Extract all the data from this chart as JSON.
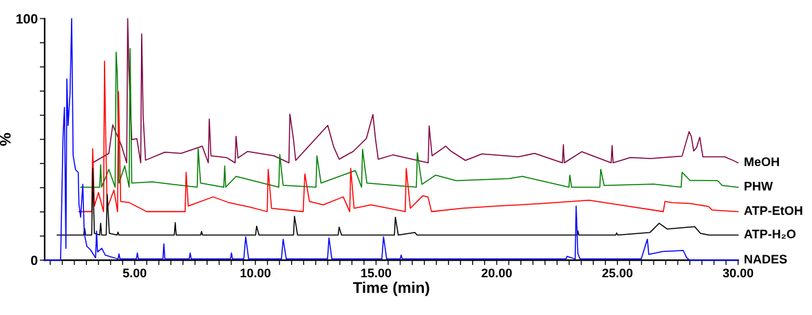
{
  "chart_data": {
    "type": "line",
    "xlabel": "Time (min)",
    "ylabel": "%",
    "xlim": [
      1.27,
      30.0
    ],
    "ylim": [
      0,
      100
    ],
    "xticks": [
      {
        "value": 1.5,
        "label": null
      },
      {
        "value": 2,
        "label": null
      },
      {
        "value": 2.5,
        "label": null
      },
      {
        "value": 3,
        "label": null
      },
      {
        "value": 3.5,
        "label": null
      },
      {
        "value": 4,
        "label": null
      },
      {
        "value": 4.5,
        "label": null
      },
      {
        "value": 5,
        "label": "5.00"
      },
      {
        "value": 5.5,
        "label": null
      },
      {
        "value": 6,
        "label": null
      },
      {
        "value": 6.5,
        "label": null
      },
      {
        "value": 7,
        "label": null
      },
      {
        "value": 7.5,
        "label": null
      },
      {
        "value": 8,
        "label": null
      },
      {
        "value": 8.5,
        "label": null
      },
      {
        "value": 9,
        "label": null
      },
      {
        "value": 9.5,
        "label": null
      },
      {
        "value": 10,
        "label": "10.00"
      },
      {
        "value": 10.5,
        "label": null
      },
      {
        "value": 11,
        "label": null
      },
      {
        "value": 11.5,
        "label": null
      },
      {
        "value": 12,
        "label": null
      },
      {
        "value": 12.5,
        "label": null
      },
      {
        "value": 13,
        "label": null
      },
      {
        "value": 13.5,
        "label": null
      },
      {
        "value": 14,
        "label": null
      },
      {
        "value": 14.5,
        "label": null
      },
      {
        "value": 15,
        "label": "15.00"
      },
      {
        "value": 15.5,
        "label": null
      },
      {
        "value": 16,
        "label": null
      },
      {
        "value": 16.5,
        "label": null
      },
      {
        "value": 17,
        "label": null
      },
      {
        "value": 17.5,
        "label": null
      },
      {
        "value": 18,
        "label": null
      },
      {
        "value": 18.5,
        "label": null
      },
      {
        "value": 19,
        "label": null
      },
      {
        "value": 19.5,
        "label": null
      },
      {
        "value": 20,
        "label": "20.00"
      },
      {
        "value": 20.5,
        "label": null
      },
      {
        "value": 21,
        "label": null
      },
      {
        "value": 21.5,
        "label": null
      },
      {
        "value": 22,
        "label": null
      },
      {
        "value": 22.5,
        "label": null
      },
      {
        "value": 23,
        "label": null
      },
      {
        "value": 23.5,
        "label": null
      },
      {
        "value": 24,
        "label": null
      },
      {
        "value": 24.5,
        "label": null
      },
      {
        "value": 25,
        "label": "25.00"
      },
      {
        "value": 25.5,
        "label": null
      },
      {
        "value": 26,
        "label": null
      },
      {
        "value": 26.5,
        "label": null
      },
      {
        "value": 27,
        "label": null
      },
      {
        "value": 27.5,
        "label": null
      },
      {
        "value": 28,
        "label": null
      },
      {
        "value": 28.5,
        "label": null
      },
      {
        "value": 29,
        "label": null
      },
      {
        "value": 29.5,
        "label": null
      },
      {
        "value": 30,
        "label": "30.00"
      }
    ],
    "yticks": [
      0,
      {
        "value": 10,
        "label": null
      },
      {
        "value": 20,
        "label": null
      },
      {
        "value": 30,
        "label": null
      },
      {
        "value": 40,
        "label": null
      },
      {
        "value": 50,
        "label": null
      },
      {
        "value": 60,
        "label": null
      },
      {
        "value": 70,
        "label": null
      },
      {
        "value": 80,
        "label": null
      },
      {
        "value": 90,
        "label": null
      },
      100
    ],
    "grid": false,
    "legend": false,
    "marker": "none",
    "line_style": "solid",
    "series": [
      {
        "name": "MeOH",
        "color": "#800040",
        "x": [
          3.26,
          3.93,
          4.09,
          4.45,
          4.67,
          4.71,
          4.76,
          4.88,
          5.09,
          5.25,
          5.29,
          5.35,
          5.45,
          6.25,
          6.92,
          7.8,
          8.05,
          8.09,
          8.16,
          8.82,
          9.16,
          9.2,
          9.28,
          9.68,
          10.77,
          11.39,
          11.43,
          11.58,
          11.67,
          13.0,
          13.24,
          13.47,
          14.05,
          14.6,
          14.87,
          14.98,
          15.09,
          15.71,
          17.16,
          17.2,
          17.32,
          17.89,
          18.08,
          18.7,
          19.39,
          20.89,
          21.57,
          22.72,
          22.76,
          22.8,
          23.52,
          24.74,
          24.78,
          24.82,
          25.54,
          26.38,
          27.68,
          27.97,
          28.06,
          28.16,
          28.28,
          28.41,
          28.54,
          29.44,
          29.77,
          30.0
        ],
        "values": [
          40.3,
          44.2,
          56.0,
          47.5,
          40.3,
          100,
          78.8,
          49.9,
          50.3,
          40.3,
          93.6,
          59.8,
          41.4,
          44.7,
          44.2,
          47.2,
          40.3,
          58.4,
          43.2,
          42.4,
          40.3,
          51.3,
          42.3,
          45.0,
          43.2,
          40.3,
          60.5,
          49.9,
          41.3,
          55.8,
          47.0,
          41.8,
          45.0,
          50.4,
          60.3,
          49.9,
          41.8,
          43.6,
          40.3,
          55.6,
          43.2,
          47.2,
          45.3,
          41.3,
          44.0,
          42.8,
          44.2,
          40.3,
          47.8,
          40.3,
          44.9,
          40.3,
          47.5,
          40.3,
          42.5,
          42.1,
          43.1,
          53.2,
          51.3,
          45.2,
          46.6,
          50.9,
          42.8,
          42.8,
          41.4,
          40.3
        ]
      },
      {
        "name": "PHW",
        "color": "#008000",
        "x": [
          2.76,
          3.55,
          3.59,
          3.63,
          3.93,
          4.19,
          4.23,
          4.28,
          4.35,
          4.59,
          4.77,
          4.81,
          4.88,
          5.73,
          7.59,
          7.63,
          7.73,
          8.69,
          8.73,
          8.77,
          9.2,
          10.97,
          11.01,
          11.15,
          12.51,
          12.55,
          12.72,
          14.14,
          14.4,
          14.44,
          14.62,
          16.67,
          16.71,
          16.9,
          17.47,
          18.32,
          20.51,
          21.06,
          22.99,
          23.03,
          23.1,
          24.27,
          24.31,
          24.45,
          26.5,
          27.64,
          27.68,
          28.01,
          29.15,
          29.34,
          30.0
        ],
        "values": [
          30.2,
          30.2,
          39.5,
          30.2,
          37.6,
          30.2,
          86.1,
          76.9,
          31.9,
          39.0,
          30.2,
          87.6,
          31.9,
          32.4,
          30.2,
          46.1,
          31.9,
          30.2,
          39.0,
          30.2,
          34.7,
          30.2,
          43.8,
          31.0,
          30.2,
          43.2,
          31.9,
          37.1,
          30.2,
          45.9,
          31.9,
          30.2,
          44.4,
          31.4,
          35.2,
          32.9,
          33.8,
          34.7,
          30.2,
          35.2,
          30.2,
          30.2,
          37.6,
          30.9,
          31.5,
          30.2,
          36.4,
          33.0,
          32.9,
          30.9,
          30.2
        ]
      },
      {
        "name": "ATP-EtOH",
        "color": "#ff0000",
        "x": [
          2.69,
          3.22,
          3.26,
          3.33,
          3.5,
          3.71,
          3.75,
          3.8,
          3.86,
          4.14,
          4.29,
          4.33,
          4.42,
          4.78,
          5.5,
          7.09,
          7.13,
          7.22,
          8.25,
          8.91,
          9.77,
          10.49,
          10.53,
          10.67,
          11.98,
          12.05,
          12.24,
          12.81,
          13.64,
          13.91,
          13.95,
          14.09,
          14.79,
          16.21,
          16.25,
          16.42,
          16.94,
          17.15,
          17.3,
          18.56,
          19.99,
          21.79,
          23.83,
          25.4,
          26.9,
          26.97,
          27.26,
          28.01,
          28.78,
          28.92,
          30.0
        ],
        "values": [
          20.1,
          20.1,
          46.1,
          22.4,
          28.0,
          20.1,
          82.4,
          51.3,
          21.5,
          29.0,
          20.1,
          69.8,
          24.3,
          23.8,
          20.1,
          20.1,
          36.4,
          22.4,
          26.2,
          23.8,
          22.0,
          20.1,
          37.6,
          21.5,
          20.1,
          35.7,
          24.3,
          22.9,
          26.2,
          20.1,
          38.0,
          21.5,
          22.9,
          20.1,
          38.0,
          21.5,
          26.7,
          26.2,
          20.1,
          21.5,
          22.4,
          23.4,
          24.8,
          22.4,
          20.1,
          24.3,
          23.8,
          23.5,
          22.2,
          20.8,
          20.1
        ]
      },
      {
        "name": "ATP-H₂O",
        "color": "#000000",
        "x": [
          1.79,
          2.89,
          2.93,
          2.97,
          3.22,
          3.26,
          3.33,
          3.55,
          3.59,
          3.63,
          3.82,
          3.86,
          3.95,
          4.27,
          4.31,
          4.35,
          6.64,
          6.68,
          6.72,
          7.73,
          7.77,
          7.81,
          10.01,
          10.05,
          10.15,
          11.58,
          11.62,
          11.75,
          13.43,
          13.47,
          13.57,
          15.76,
          15.8,
          15.92,
          16.61,
          16.7,
          23.32,
          23.36,
          23.4,
          24.93,
          24.97,
          25.01,
          26.35,
          26.73,
          27.06,
          28.2,
          28.44,
          28.78,
          30.0
        ],
        "values": [
          10.4,
          10.4,
          13.0,
          10.4,
          10.4,
          38.0,
          11.1,
          10.4,
          15.3,
          10.4,
          10.4,
          27.2,
          11.1,
          10.4,
          11.6,
          10.4,
          10.4,
          15.6,
          10.4,
          10.4,
          11.9,
          10.4,
          10.4,
          14.1,
          10.4,
          10.4,
          18.2,
          10.4,
          10.4,
          13.7,
          10.4,
          10.4,
          17.8,
          10.4,
          11.5,
          10.4,
          10.4,
          12.2,
          10.4,
          10.4,
          11.3,
          10.4,
          11.5,
          15.3,
          12.9,
          13.9,
          11.1,
          10.4,
          10.4
        ]
      },
      {
        "name": "NADES",
        "color": "#0000ff",
        "x": [
          1.27,
          1.93,
          2.03,
          2.09,
          2.15,
          2.19,
          2.24,
          2.32,
          2.39,
          2.45,
          2.55,
          2.66,
          2.69,
          2.76,
          2.85,
          2.91,
          3.02,
          3.17,
          3.38,
          3.42,
          3.46,
          3.64,
          3.78,
          4.31,
          4.35,
          4.39,
          5.07,
          5.11,
          5.15,
          6.17,
          6.21,
          6.25,
          7.26,
          7.3,
          7.34,
          8.97,
          9.01,
          9.05,
          9.52,
          9.6,
          9.72,
          11.08,
          11.15,
          11.28,
          12.99,
          13.05,
          13.17,
          15.24,
          15.31,
          15.44,
          16.0,
          16.04,
          16.08,
          22.87,
          22.91,
          23.25,
          23.29,
          23.36,
          23.45,
          25.98,
          26.02,
          26.24,
          26.3,
          26.87,
          27.73,
          27.87,
          28.0,
          30.0
        ],
        "values": [
          0,
          0,
          50.9,
          63.2,
          4.9,
          75,
          55.7,
          68.8,
          100,
          43.3,
          37.4,
          36.4,
          23.3,
          17.8,
          31.4,
          11.1,
          5.7,
          4.3,
          1.0,
          12.0,
          3.4,
          4.9,
          2.1,
          0.5,
          2.6,
          0.5,
          0.5,
          3.0,
          0.5,
          0.5,
          6.8,
          0.5,
          0.5,
          3.0,
          0.5,
          0.5,
          3.0,
          0.5,
          0.5,
          9.7,
          0.5,
          0.5,
          8.7,
          0.5,
          0.5,
          9.2,
          0.5,
          0.5,
          9.7,
          0.5,
          0.5,
          2.1,
          0.5,
          0.5,
          1.6,
          0.5,
          22.4,
          2.8,
          0.5,
          0.5,
          1.6,
          8.7,
          2.4,
          3.6,
          4.0,
          1.0,
          0,
          0
        ]
      }
    ]
  }
}
